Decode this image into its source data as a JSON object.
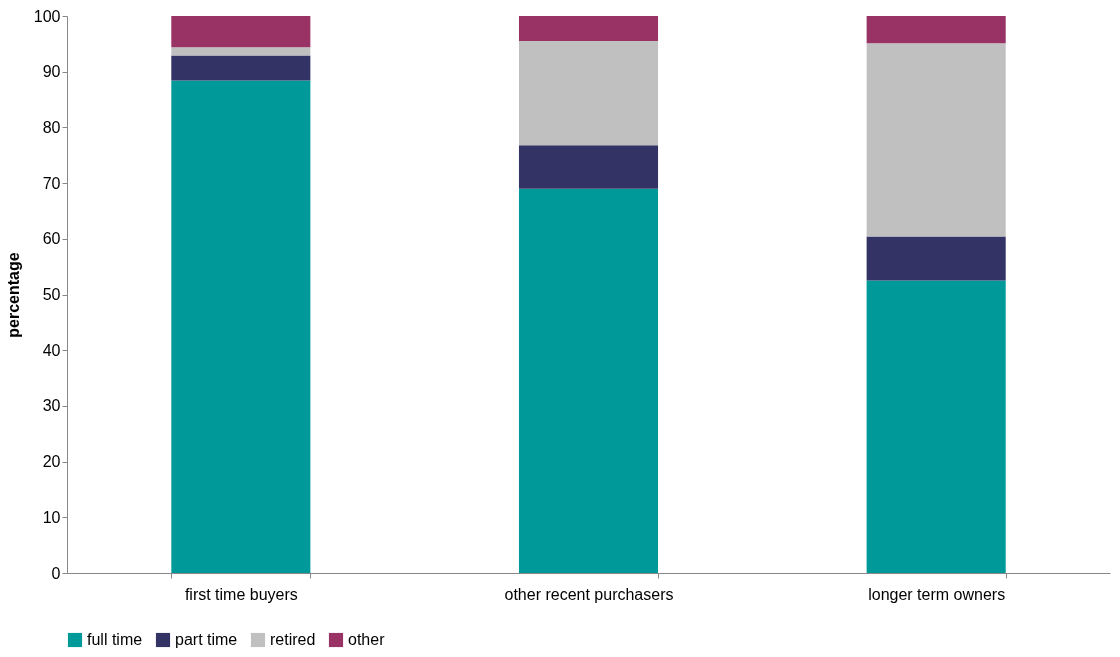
{
  "chart_data": {
    "type": "bar",
    "stacked": true,
    "ylabel": "percentage",
    "categories": [
      "first time buyers",
      "other recent purchasers",
      "longer term owners"
    ],
    "series": [
      {
        "name": "full time",
        "color": "#009999",
        "values": [
          88.4,
          69.0,
          52.5
        ]
      },
      {
        "name": "part time",
        "color": "#333366",
        "values": [
          4.5,
          7.8,
          7.9
        ]
      },
      {
        "name": "retired",
        "color": "#c0c0c0",
        "values": [
          1.5,
          18.7,
          34.7
        ]
      },
      {
        "name": "other",
        "color": "#993366",
        "values": [
          5.6,
          4.5,
          4.9
        ]
      }
    ],
    "ylim": [
      0,
      100
    ],
    "yticks": [
      0,
      10,
      20,
      30,
      40,
      50,
      60,
      70,
      80,
      90,
      100
    ],
    "grid": false,
    "legend": "bottom"
  }
}
